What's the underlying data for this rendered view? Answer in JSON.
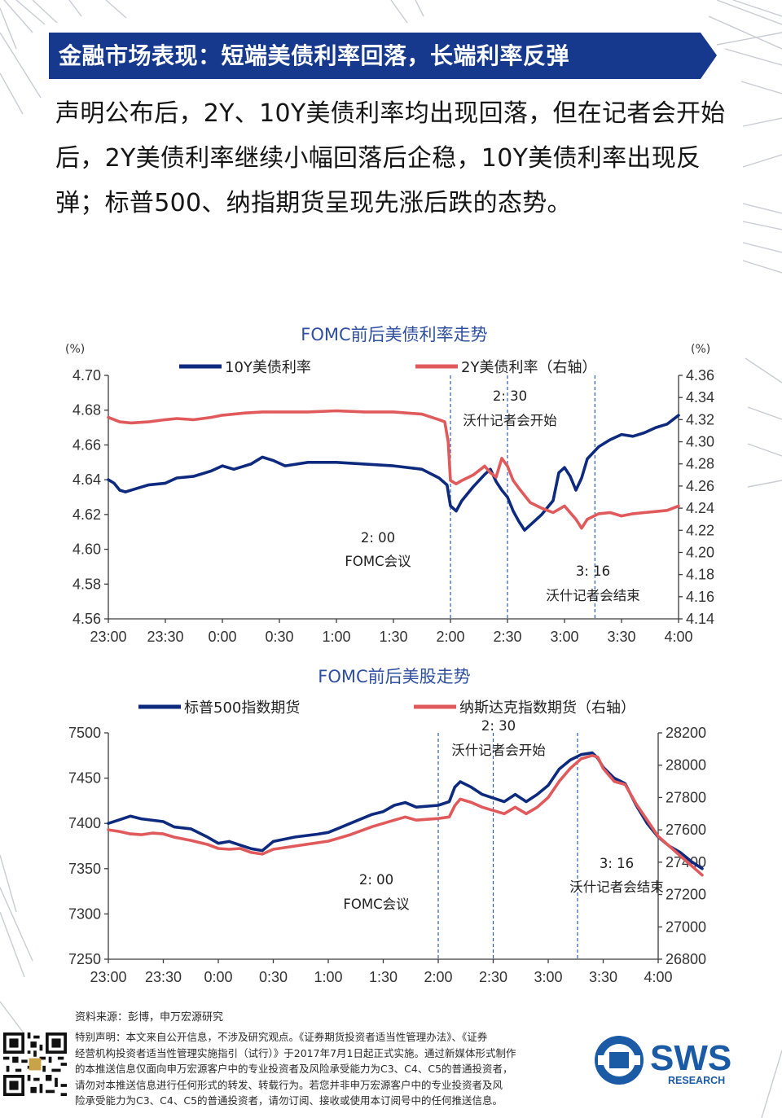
{
  "header": {
    "title": "金融市场表现：短端美债利率回落，长端利率反弹"
  },
  "intro_text": "声明公布后，2Y、10Y美债利率均出现回落，但在记者会开始后，2Y美债利率继续小幅回落后企稳，10Y美债利率出现反弹；标普500、纳指期货呈现先涨后跌的态势。",
  "chart_data": [
    {
      "type": "line",
      "title": "FOMC前后美债利率走势",
      "left_unit": "(%)",
      "right_unit": "(%)",
      "x_ticks": [
        "23:00",
        "23:30",
        "0:00",
        "0:30",
        "1:00",
        "1:30",
        "2:00",
        "2:30",
        "3:00",
        "3:30",
        "4:00"
      ],
      "ylim_left": [
        4.56,
        4.7
      ],
      "y_ticks_left": [
        "4.56",
        "4.58",
        "4.60",
        "4.62",
        "4.64",
        "4.66",
        "4.68",
        "4.70"
      ],
      "ylim_right": [
        4.14,
        4.36
      ],
      "y_ticks_right": [
        "4.14",
        "4.16",
        "4.18",
        "4.20",
        "4.22",
        "4.24",
        "4.26",
        "4.28",
        "4.30",
        "4.32",
        "4.34",
        "4.36"
      ],
      "series": [
        {
          "name": "10Y美债利率",
          "axis": "left",
          "color": "#0d2a7e",
          "points": [
            [
              0,
              4.64
            ],
            [
              0.05,
              4.638
            ],
            [
              0.1,
              4.634
            ],
            [
              0.15,
              4.633
            ],
            [
              0.25,
              4.635
            ],
            [
              0.35,
              4.637
            ],
            [
              0.5,
              4.638
            ],
            [
              0.6,
              4.641
            ],
            [
              0.75,
              4.642
            ],
            [
              0.9,
              4.645
            ],
            [
              1.0,
              4.648
            ],
            [
              1.1,
              4.646
            ],
            [
              1.25,
              4.649
            ],
            [
              1.35,
              4.653
            ],
            [
              1.45,
              4.651
            ],
            [
              1.55,
              4.648
            ],
            [
              1.75,
              4.65
            ],
            [
              2.0,
              4.65
            ],
            [
              2.25,
              4.649
            ],
            [
              2.5,
              4.648
            ],
            [
              2.75,
              4.646
            ],
            [
              2.9,
              4.641
            ],
            [
              2.97,
              4.637
            ],
            [
              3.0,
              4.625
            ],
            [
              3.05,
              4.622
            ],
            [
              3.1,
              4.628
            ],
            [
              3.2,
              4.636
            ],
            [
              3.3,
              4.643
            ],
            [
              3.35,
              4.646
            ],
            [
              3.4,
              4.639
            ],
            [
              3.45,
              4.634
            ],
            [
              3.5,
              4.63
            ],
            [
              3.55,
              4.622
            ],
            [
              3.6,
              4.616
            ],
            [
              3.65,
              4.611
            ],
            [
              3.7,
              4.614
            ],
            [
              3.8,
              4.62
            ],
            [
              3.9,
              4.628
            ],
            [
              3.95,
              4.644
            ],
            [
              4.0,
              4.647
            ],
            [
              4.05,
              4.642
            ],
            [
              4.1,
              4.634
            ],
            [
              4.15,
              4.641
            ],
            [
              4.2,
              4.652
            ],
            [
              4.3,
              4.659
            ],
            [
              4.4,
              4.663
            ],
            [
              4.5,
              4.666
            ],
            [
              4.6,
              4.665
            ],
            [
              4.7,
              4.667
            ],
            [
              4.8,
              4.67
            ],
            [
              4.9,
              4.672
            ],
            [
              5.0,
              4.677
            ]
          ]
        },
        {
          "name": "2Y美债利率（右轴）",
          "axis": "right",
          "color": "#e05a5c",
          "points": [
            [
              0,
              4.322
            ],
            [
              0.1,
              4.318
            ],
            [
              0.2,
              4.317
            ],
            [
              0.35,
              4.318
            ],
            [
              0.5,
              4.32
            ],
            [
              0.6,
              4.321
            ],
            [
              0.75,
              4.32
            ],
            [
              0.9,
              4.322
            ],
            [
              1.0,
              4.324
            ],
            [
              1.2,
              4.326
            ],
            [
              1.35,
              4.327
            ],
            [
              1.5,
              4.327
            ],
            [
              1.75,
              4.327
            ],
            [
              2.0,
              4.328
            ],
            [
              2.25,
              4.327
            ],
            [
              2.5,
              4.327
            ],
            [
              2.75,
              4.325
            ],
            [
              2.9,
              4.32
            ],
            [
              2.95,
              4.318
            ],
            [
              2.98,
              4.3
            ],
            [
              3.0,
              4.265
            ],
            [
              3.05,
              4.262
            ],
            [
              3.1,
              4.265
            ],
            [
              3.2,
              4.27
            ],
            [
              3.3,
              4.278
            ],
            [
              3.35,
              4.272
            ],
            [
              3.4,
              4.268
            ],
            [
              3.45,
              4.285
            ],
            [
              3.5,
              4.278
            ],
            [
              3.55,
              4.265
            ],
            [
              3.6,
              4.258
            ],
            [
              3.7,
              4.245
            ],
            [
              3.8,
              4.24
            ],
            [
              3.9,
              4.236
            ],
            [
              4.0,
              4.242
            ],
            [
              4.1,
              4.23
            ],
            [
              4.15,
              4.222
            ],
            [
              4.2,
              4.23
            ],
            [
              4.3,
              4.235
            ],
            [
              4.4,
              4.236
            ],
            [
              4.5,
              4.233
            ],
            [
              4.6,
              4.235
            ],
            [
              4.7,
              4.236
            ],
            [
              4.8,
              4.237
            ],
            [
              4.9,
              4.238
            ],
            [
              5.0,
              4.242
            ]
          ]
        }
      ],
      "annotations": [
        {
          "time": "2: 00",
          "label": "FOMC会议"
        },
        {
          "time": "2: 30",
          "label": "沃什记者会开始"
        },
        {
          "time": "3: 16",
          "label": "沃什记者会结束"
        }
      ]
    },
    {
      "type": "line",
      "title": "FOMC前后美股走势",
      "x_ticks": [
        "23:00",
        "23:30",
        "0:00",
        "0:30",
        "1:00",
        "1:30",
        "2:00",
        "2:30",
        "3:00",
        "3:30",
        "4:00"
      ],
      "ylim_left": [
        7250,
        7500
      ],
      "y_ticks_left": [
        "7250",
        "7300",
        "7350",
        "7400",
        "7450",
        "7500"
      ],
      "ylim_right": [
        26800,
        28200
      ],
      "y_ticks_right": [
        "26800",
        "27000",
        "27200",
        "27400",
        "27600",
        "27800",
        "28000",
        "28200"
      ],
      "series": [
        {
          "name": "标普500指数期货",
          "axis": "left",
          "color": "#0d2a7e",
          "points": [
            [
              0,
              7400
            ],
            [
              0.1,
              7404
            ],
            [
              0.2,
              7408
            ],
            [
              0.3,
              7405
            ],
            [
              0.5,
              7402
            ],
            [
              0.6,
              7396
            ],
            [
              0.75,
              7394
            ],
            [
              0.9,
              7385
            ],
            [
              1.0,
              7378
            ],
            [
              1.1,
              7380
            ],
            [
              1.2,
              7376
            ],
            [
              1.3,
              7372
            ],
            [
              1.4,
              7370
            ],
            [
              1.5,
              7380
            ],
            [
              1.7,
              7385
            ],
            [
              1.9,
              7388
            ],
            [
              2.0,
              7390
            ],
            [
              2.1,
              7395
            ],
            [
              2.2,
              7400
            ],
            [
              2.4,
              7410
            ],
            [
              2.5,
              7413
            ],
            [
              2.6,
              7420
            ],
            [
              2.7,
              7423
            ],
            [
              2.8,
              7418
            ],
            [
              3.0,
              7420
            ],
            [
              3.1,
              7424
            ],
            [
              3.15,
              7440
            ],
            [
              3.2,
              7446
            ],
            [
              3.3,
              7440
            ],
            [
              3.4,
              7432
            ],
            [
              3.5,
              7428
            ],
            [
              3.6,
              7424
            ],
            [
              3.7,
              7432
            ],
            [
              3.8,
              7424
            ],
            [
              3.9,
              7432
            ],
            [
              4.0,
              7442
            ],
            [
              4.1,
              7460
            ],
            [
              4.2,
              7470
            ],
            [
              4.3,
              7476
            ],
            [
              4.4,
              7478
            ],
            [
              4.45,
              7472
            ],
            [
              4.5,
              7462
            ],
            [
              4.6,
              7450
            ],
            [
              4.7,
              7444
            ],
            [
              4.8,
              7420
            ],
            [
              4.9,
              7400
            ],
            [
              5.0,
              7385
            ],
            [
              5.1,
              7375
            ],
            [
              5.2,
              7368
            ],
            [
              5.3,
              7358
            ],
            [
              5.4,
              7350
            ]
          ]
        },
        {
          "name": "纳斯达克指数期货（右轴）",
          "axis": "right",
          "color": "#e05a5c",
          "points": [
            [
              0,
              27600
            ],
            [
              0.1,
              27590
            ],
            [
              0.2,
              27575
            ],
            [
              0.3,
              27570
            ],
            [
              0.4,
              27580
            ],
            [
              0.5,
              27575
            ],
            [
              0.6,
              27555
            ],
            [
              0.75,
              27535
            ],
            [
              0.9,
              27510
            ],
            [
              1.0,
              27485
            ],
            [
              1.1,
              27480
            ],
            [
              1.2,
              27485
            ],
            [
              1.3,
              27460
            ],
            [
              1.4,
              27450
            ],
            [
              1.5,
              27480
            ],
            [
              1.7,
              27500
            ],
            [
              1.9,
              27520
            ],
            [
              2.0,
              27530
            ],
            [
              2.1,
              27550
            ],
            [
              2.2,
              27570
            ],
            [
              2.4,
              27620
            ],
            [
              2.5,
              27640
            ],
            [
              2.6,
              27660
            ],
            [
              2.7,
              27680
            ],
            [
              2.8,
              27660
            ],
            [
              3.0,
              27670
            ],
            [
              3.1,
              27680
            ],
            [
              3.15,
              27750
            ],
            [
              3.2,
              27790
            ],
            [
              3.3,
              27770
            ],
            [
              3.4,
              27740
            ],
            [
              3.5,
              27720
            ],
            [
              3.6,
              27700
            ],
            [
              3.7,
              27740
            ],
            [
              3.8,
              27700
            ],
            [
              3.9,
              27740
            ],
            [
              4.0,
              27800
            ],
            [
              4.1,
              27900
            ],
            [
              4.2,
              27980
            ],
            [
              4.3,
              28040
            ],
            [
              4.4,
              28060
            ],
            [
              4.45,
              28050
            ],
            [
              4.5,
              27980
            ],
            [
              4.6,
              27900
            ],
            [
              4.7,
              27880
            ],
            [
              4.8,
              27760
            ],
            [
              4.9,
              27660
            ],
            [
              5.0,
              27560
            ],
            [
              5.1,
              27500
            ],
            [
              5.2,
              27440
            ],
            [
              5.3,
              27380
            ],
            [
              5.4,
              27320
            ]
          ]
        }
      ],
      "annotations": [
        {
          "time": "2: 00",
          "label": "FOMC会议"
        },
        {
          "time": "2: 30",
          "label": "沃什记者会开始"
        },
        {
          "time": "3: 16",
          "label": "沃什记者会结束"
        }
      ]
    }
  ],
  "footer": {
    "source": "资料来源：彭博，申万宏源研究",
    "disclaimer_lines": [
      "特别声明：本文来自公开信息，不涉及研究观点。《证券期货投资者适当性管理办法》、《证券",
      "经营机构投资者适当性管理实施指引（试行）》于2017年7月1日起正式实施。通过新媒体形式制作",
      "的本推送信息仅面向申万宏源客户中的专业投资者及风险承受能力为C3、C4、C5的普通投资者，",
      "请勿对本推送信息进行任何形式的转发、转载行为。若您并非申万宏源客户中的专业投资者及风",
      "险承受能力为C3、C4、C5的普通投资者，请勿订阅、接收或使用本订阅号中的任何推送信息。"
    ],
    "logo_text": "SWS",
    "logo_subtext": "RESEARCH"
  },
  "colors": {
    "banner": "#16398e",
    "series_dark": "#0d2a7e",
    "series_red": "#e05a5c",
    "title_blue": "#2f4fa0",
    "logo_blue": "#1b5aa5"
  }
}
